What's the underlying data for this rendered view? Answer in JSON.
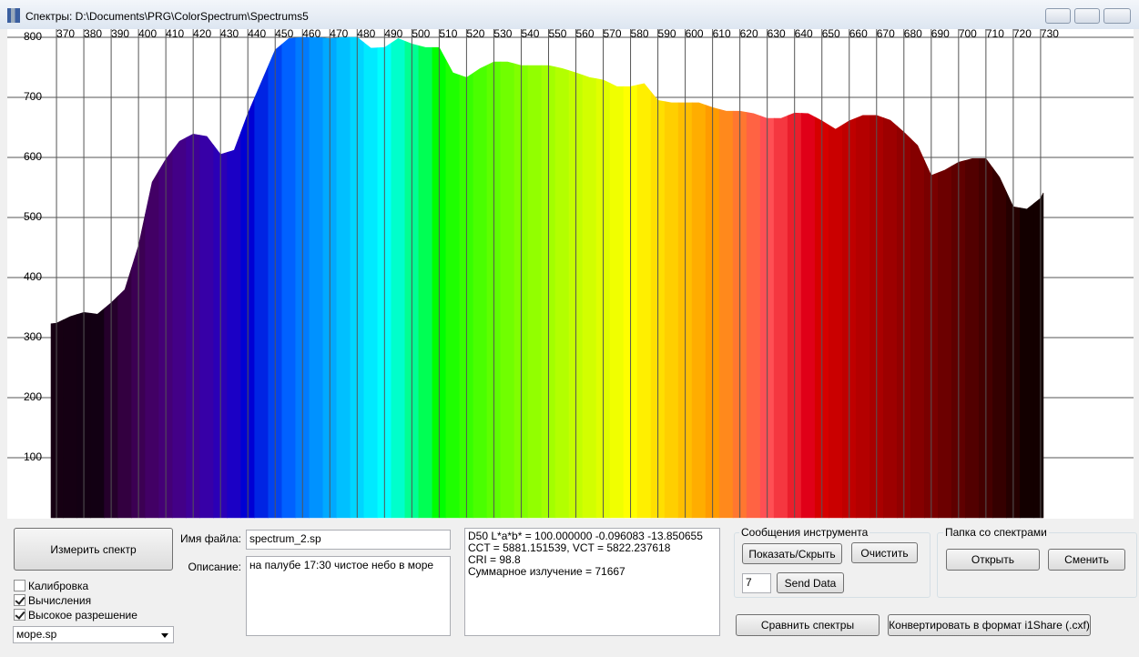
{
  "window": {
    "title": "Спектры: D:\\Documents\\PRG\\ColorSpectrum\\Spectrums5"
  },
  "chart_data": {
    "type": "area",
    "x": [
      368,
      370,
      375,
      380,
      385,
      390,
      395,
      400,
      405,
      410,
      415,
      420,
      425,
      430,
      435,
      440,
      445,
      450,
      455,
      460,
      465,
      470,
      475,
      480,
      485,
      490,
      495,
      500,
      505,
      510,
      515,
      520,
      525,
      530,
      535,
      540,
      545,
      550,
      555,
      560,
      565,
      570,
      575,
      580,
      585,
      590,
      595,
      600,
      605,
      610,
      615,
      620,
      625,
      630,
      635,
      640,
      645,
      650,
      655,
      660,
      665,
      670,
      675,
      680,
      685,
      690,
      695,
      700,
      705,
      710,
      715,
      720,
      725,
      730,
      731
    ],
    "values": [
      323,
      324,
      335,
      342,
      339,
      358,
      380,
      453,
      559,
      597,
      627,
      639,
      635,
      605,
      612,
      673,
      726,
      779,
      798,
      800,
      800,
      798,
      800,
      800,
      782,
      783,
      798,
      789,
      783,
      783,
      741,
      733,
      748,
      759,
      759,
      753,
      753,
      753,
      748,
      741,
      733,
      729,
      718,
      718,
      723,
      695,
      691,
      691,
      691,
      683,
      677,
      677,
      673,
      665,
      665,
      674,
      673,
      661,
      647,
      661,
      670,
      670,
      662,
      642,
      620,
      570,
      579,
      592,
      598,
      598,
      567,
      518,
      514,
      532,
      541
    ],
    "xlim": [
      352,
      764
    ],
    "ylim": [
      0,
      800
    ],
    "xticks": [
      370,
      380,
      390,
      400,
      410,
      420,
      430,
      440,
      450,
      460,
      470,
      480,
      490,
      500,
      510,
      520,
      530,
      540,
      550,
      560,
      570,
      580,
      590,
      600,
      610,
      620,
      630,
      640,
      650,
      660,
      670,
      680,
      690,
      700,
      710,
      720,
      730
    ],
    "yticks": [
      100,
      200,
      300,
      400,
      500,
      600,
      700,
      800
    ],
    "grid": true
  },
  "controls": {
    "measure_button": "Измерить спектр",
    "checkboxes": [
      {
        "label": "Калибровка",
        "checked": false
      },
      {
        "label": "Вычисления",
        "checked": true
      },
      {
        "label": "Высокое разрешение",
        "checked": true
      }
    ],
    "combo": "море.sp",
    "file_label": "Имя файла:",
    "file_value": "spectrum_2.sp",
    "desc_label": "Описание:",
    "desc_value": "на палубе 17:30 чистое небо в море",
    "info_lines": [
      "D50 L*a*b* = 100.000000 -0.096083 -13.850655",
      "CCT = 5881.151539, VCT = 5822.237618",
      "CRI = 98.8",
      "Суммарное излучение = 71667"
    ],
    "messages_group": "Сообщения инструмента",
    "show_hide": "Показать/Скрыть",
    "clear": "Очистить",
    "spin_value": "7",
    "send": "Send Data",
    "folder_group": "Папка со спектрами",
    "open": "Открыть",
    "change": "Сменить",
    "compare": "Сравнить спектры",
    "convert": "Конвертировать в формат i1Share (.cxf)"
  }
}
